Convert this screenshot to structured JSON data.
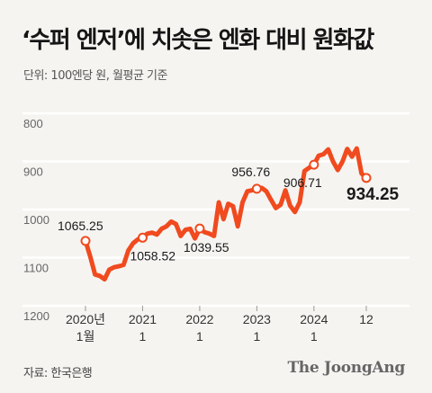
{
  "title": "‘수퍼 엔저’에 치솟은 엔화 대비 원화값",
  "subtitle": "단위: 100엔당 원, 월평균 기준",
  "source": "자료: 한국은행",
  "logo": "The JoongAng",
  "colors": {
    "line": "#f04a1e",
    "grid": "#ffffff",
    "background": "#f5f4f1"
  },
  "chart_data": {
    "type": "line",
    "title": "‘수퍼 엔저’에 치솟은 엔화 대비 원화값",
    "ylabel": "단위: 100엔당 원, 월평균 기준",
    "y_inverted": true,
    "ylim": [
      1200,
      800
    ],
    "yticks": [
      800,
      900,
      1000,
      1100,
      1200
    ],
    "xticks": [
      {
        "line1": "2020년",
        "line2": "1월",
        "x": 0
      },
      {
        "line1": "2021",
        "line2": "1",
        "x": 12
      },
      {
        "line1": "2022",
        "line2": "1",
        "x": 24
      },
      {
        "line1": "2023",
        "line2": "1",
        "x": 36
      },
      {
        "line1": "2024",
        "line2": "1",
        "x": 48
      },
      {
        "line1": "12",
        "line2": "",
        "x": 59
      }
    ],
    "grid": "horizontal",
    "series": [
      {
        "values": [
          1065.25,
          1098,
          1135,
          1138,
          1145,
          1125,
          1120,
          1118,
          1115,
          1085,
          1070,
          1062,
          1058.52,
          1050,
          1048,
          1052,
          1040,
          1035,
          1025,
          1030,
          1055,
          1042,
          1040,
          1060,
          1039.55,
          1047,
          1050,
          1055,
          985,
          1020,
          988,
          993,
          1035,
          985,
          962,
          960,
          956.76,
          955,
          962,
          980,
          997,
          990,
          960,
          992,
          1005,
          985,
          920,
          913,
          906.71,
          888,
          885,
          875,
          900,
          918,
          900,
          874,
          890,
          873,
          925,
          934.25
        ]
      },
      {
        "values": []
      }
    ],
    "annotations": [
      {
        "index": 0,
        "label": "1065.25",
        "bold": false
      },
      {
        "index": 12,
        "label": "1058.52",
        "bold": false
      },
      {
        "index": 24,
        "label": "1039.55",
        "bold": false
      },
      {
        "index": 36,
        "label": "956.76",
        "bold": false
      },
      {
        "index": 48,
        "label": "906.71",
        "bold": false
      },
      {
        "index": 59,
        "label": "934.25",
        "bold": true
      }
    ]
  }
}
